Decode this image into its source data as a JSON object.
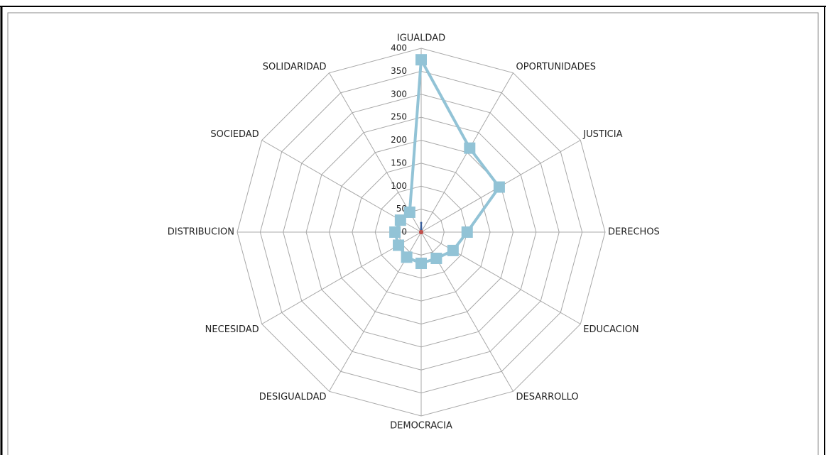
{
  "chart_data": {
    "type": "radar",
    "categories": [
      "IGUALDAD",
      "OPORTUNIDADES",
      "JUSTICIA",
      "DERECHOS",
      "EDUCACION",
      "DESARROLLO",
      "DEMOCRACIA",
      "DESIGUALDAD",
      "NECESIDAD",
      "DISTRIBUCION",
      "SOCIEDAD",
      "SOLIDARIDAD"
    ],
    "series": [
      {
        "color": "#92c3d6",
        "values": [
          375,
          211,
          196,
          100,
          80,
          66,
          68,
          63,
          57,
          57,
          52,
          50
        ]
      },
      {
        "color": "#3a5f9a",
        "values": [
          20,
          2,
          2,
          2,
          2,
          2,
          2,
          2,
          2,
          2,
          2,
          2
        ]
      },
      {
        "color": "#c0504d",
        "values": [
          0,
          0,
          0,
          0,
          0,
          0,
          0,
          0,
          0,
          0,
          0,
          0
        ]
      }
    ],
    "ylim": [
      0,
      400
    ],
    "yticks": [
      0,
      50,
      100,
      150,
      200,
      250,
      300,
      350,
      400
    ],
    "grid": true
  }
}
